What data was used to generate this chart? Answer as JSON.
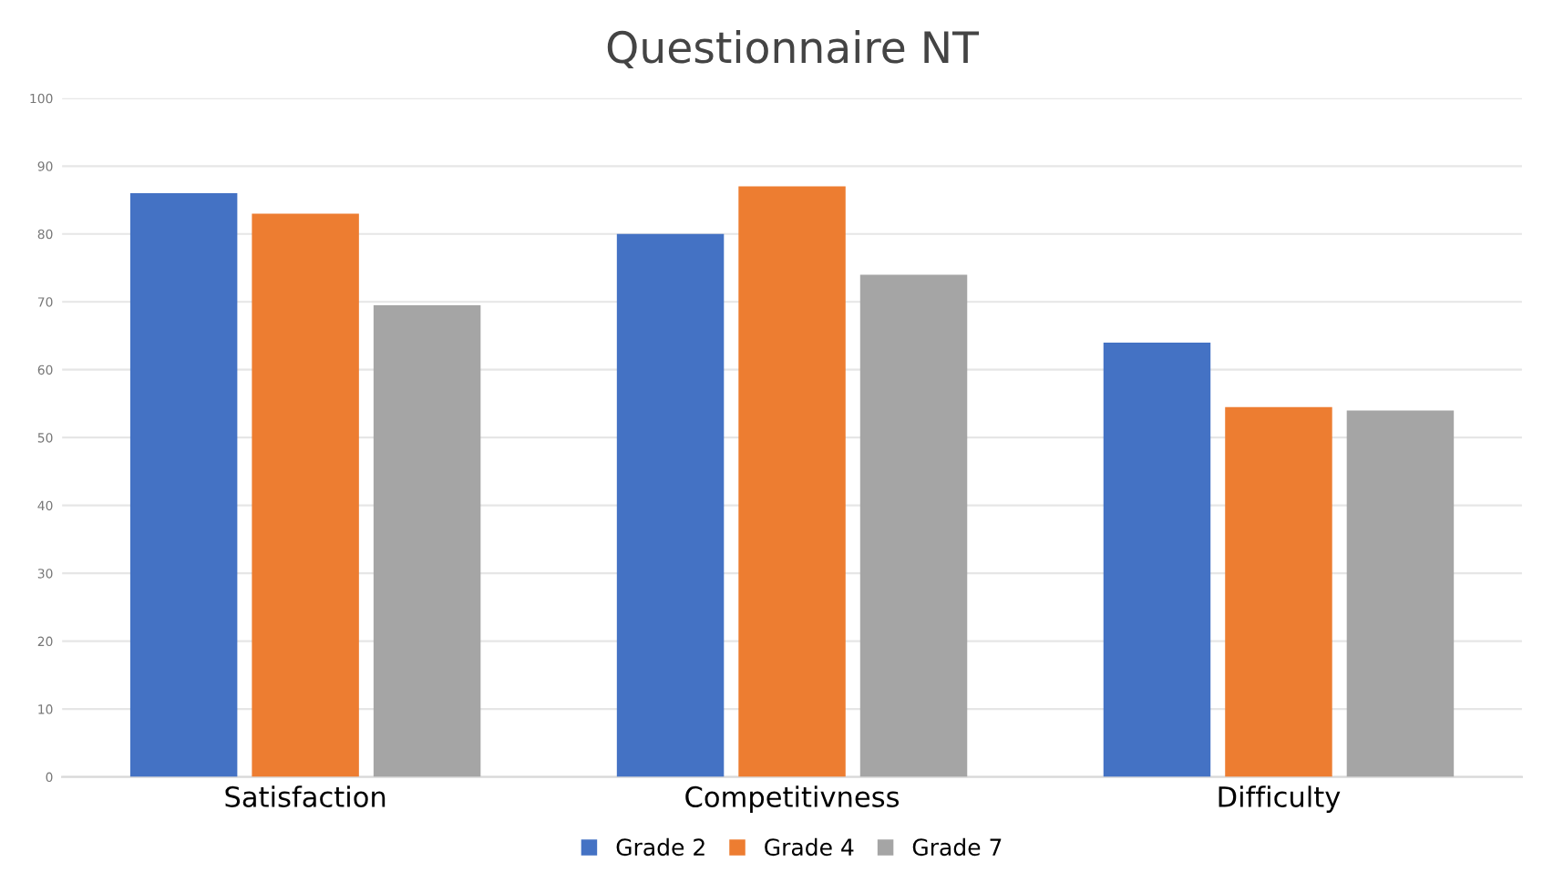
{
  "chart_data": {
    "type": "bar",
    "title": "Questionnaire NT",
    "categories": [
      "Satisfaction",
      "Competitivness",
      "Difficulty"
    ],
    "series": [
      {
        "name": "Grade 2",
        "color": "#4472c4",
        "values": [
          86,
          80,
          64
        ]
      },
      {
        "name": "Grade 4",
        "color": "#ed7d31",
        "values": [
          83,
          87,
          54.5
        ]
      },
      {
        "name": "Grade 7",
        "color": "#a5a5a5",
        "values": [
          69.5,
          74,
          54
        ]
      }
    ],
    "ylim": [
      0,
      100
    ],
    "yticks": [
      0,
      10,
      20,
      30,
      40,
      50,
      60,
      70,
      80,
      90,
      100
    ],
    "grid": "y",
    "legend": "bottom"
  }
}
